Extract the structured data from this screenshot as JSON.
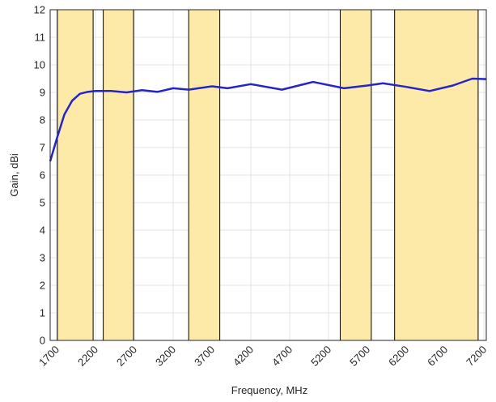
{
  "chart_data": {
    "type": "line",
    "xlabel": "Frequency, MHz",
    "ylabel": "Gain, dBi",
    "xlim": [
      1617,
      7230
    ],
    "ylim": [
      0,
      12
    ],
    "xticks": [
      1700,
      2200,
      2700,
      3200,
      3700,
      4200,
      4700,
      5200,
      5700,
      6200,
      6700,
      7200
    ],
    "yticks": [
      0,
      1,
      2,
      3,
      4,
      5,
      6,
      7,
      8,
      9,
      10,
      11,
      12
    ],
    "grid": true,
    "bands": [
      {
        "start": 1710,
        "end": 2170
      },
      {
        "start": 2300,
        "end": 2690
      },
      {
        "start": 3400,
        "end": 3800
      },
      {
        "start": 5350,
        "end": 5750
      },
      {
        "start": 6050,
        "end": 7125
      }
    ],
    "band_color": "#fde9a8",
    "x": [
      1617,
      1700,
      1800,
      1900,
      2000,
      2100,
      2200,
      2400,
      2600,
      2800,
      3000,
      3200,
      3400,
      3700,
      3900,
      4200,
      4600,
      5000,
      5400,
      5700,
      5900,
      6200,
      6500,
      6800,
      7050,
      7230
    ],
    "series": [
      {
        "color": "#2424c8",
        "values": [
          6.5,
          7.3,
          8.2,
          8.7,
          8.95,
          9.02,
          9.05,
          9.05,
          9.0,
          9.08,
          9.02,
          9.15,
          9.1,
          9.22,
          9.15,
          9.3,
          9.1,
          9.38,
          9.15,
          9.25,
          9.33,
          9.2,
          9.05,
          9.25,
          9.5,
          9.48
        ]
      }
    ]
  }
}
